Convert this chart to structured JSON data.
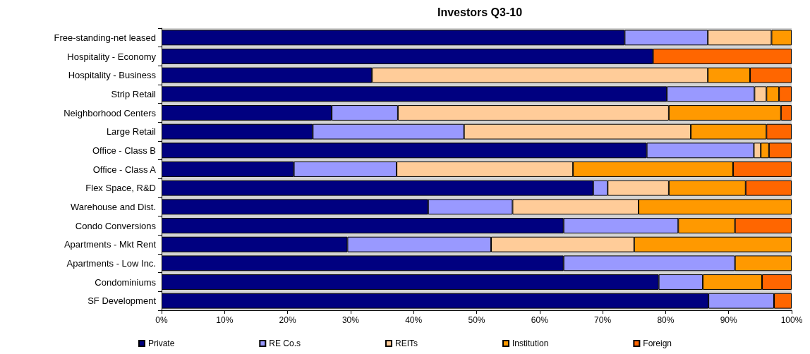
{
  "chart_data": {
    "type": "bar",
    "title": "Investors Q3-10",
    "orientation": "horizontal",
    "stacked": true,
    "legend": "bottom",
    "categories": [
      "Free-standing-net leased",
      "Hospitality - Economy",
      "Hospitality - Business",
      "Strip Retail",
      "Neighborhood Centers",
      "Large Retail",
      "Office - Class B",
      "Office - Class A",
      "Flex Space, R&D",
      "Warehouse and Dist.",
      "Condo Conversions",
      "Apartments - Mkt Rent",
      "Apartments - Low Inc.",
      "Condominiums",
      "SF Development"
    ],
    "series": [
      {
        "name": "Private",
        "color": "#000080",
        "values": [
          73.5,
          78,
          33.4,
          80.2,
          27,
          24,
          77,
          21,
          68.5,
          42.3,
          63.8,
          29.5,
          63.8,
          78.9,
          86.8
        ]
      },
      {
        "name": "RE Co.s",
        "color": "#9999ff",
        "values": [
          13.2,
          null,
          null,
          13.9,
          10.5,
          24,
          17,
          16.3,
          2.3,
          13.4,
          18.2,
          22.8,
          27.2,
          7,
          10.4
        ]
      },
      {
        "name": "REITs",
        "color": "#ffcc99",
        "values": [
          10.1,
          null,
          53.3,
          1.9,
          43,
          36,
          1.1,
          28,
          9.7,
          20,
          null,
          22.7,
          null,
          null,
          null
        ]
      },
      {
        "name": "Institution",
        "color": "#ff9900",
        "values": [
          3.2,
          null,
          6.7,
          2,
          17.8,
          12,
          1.3,
          25.4,
          12.2,
          24.3,
          9,
          25,
          9,
          9.4,
          null
        ]
      },
      {
        "name": "Foreign",
        "color": "#ff6600",
        "values": [
          null,
          22,
          6.6,
          2,
          1.7,
          4,
          3.6,
          9.3,
          7.3,
          null,
          9,
          null,
          null,
          4.7,
          2.8
        ]
      }
    ],
    "xlim": [
      0,
      100
    ],
    "xticks": [
      {
        "value": 0,
        "label": "0%"
      },
      {
        "value": 10,
        "label": "10%"
      },
      {
        "value": 20,
        "label": "20%"
      },
      {
        "value": 30,
        "label": "30%"
      },
      {
        "value": 40,
        "label": "40%"
      },
      {
        "value": 50,
        "label": "50%"
      },
      {
        "value": 60,
        "label": "60%"
      },
      {
        "value": 70,
        "label": "70%"
      },
      {
        "value": 80,
        "label": "80%"
      },
      {
        "value": 90,
        "label": "90%"
      },
      {
        "value": 100,
        "label": "100%"
      }
    ]
  }
}
